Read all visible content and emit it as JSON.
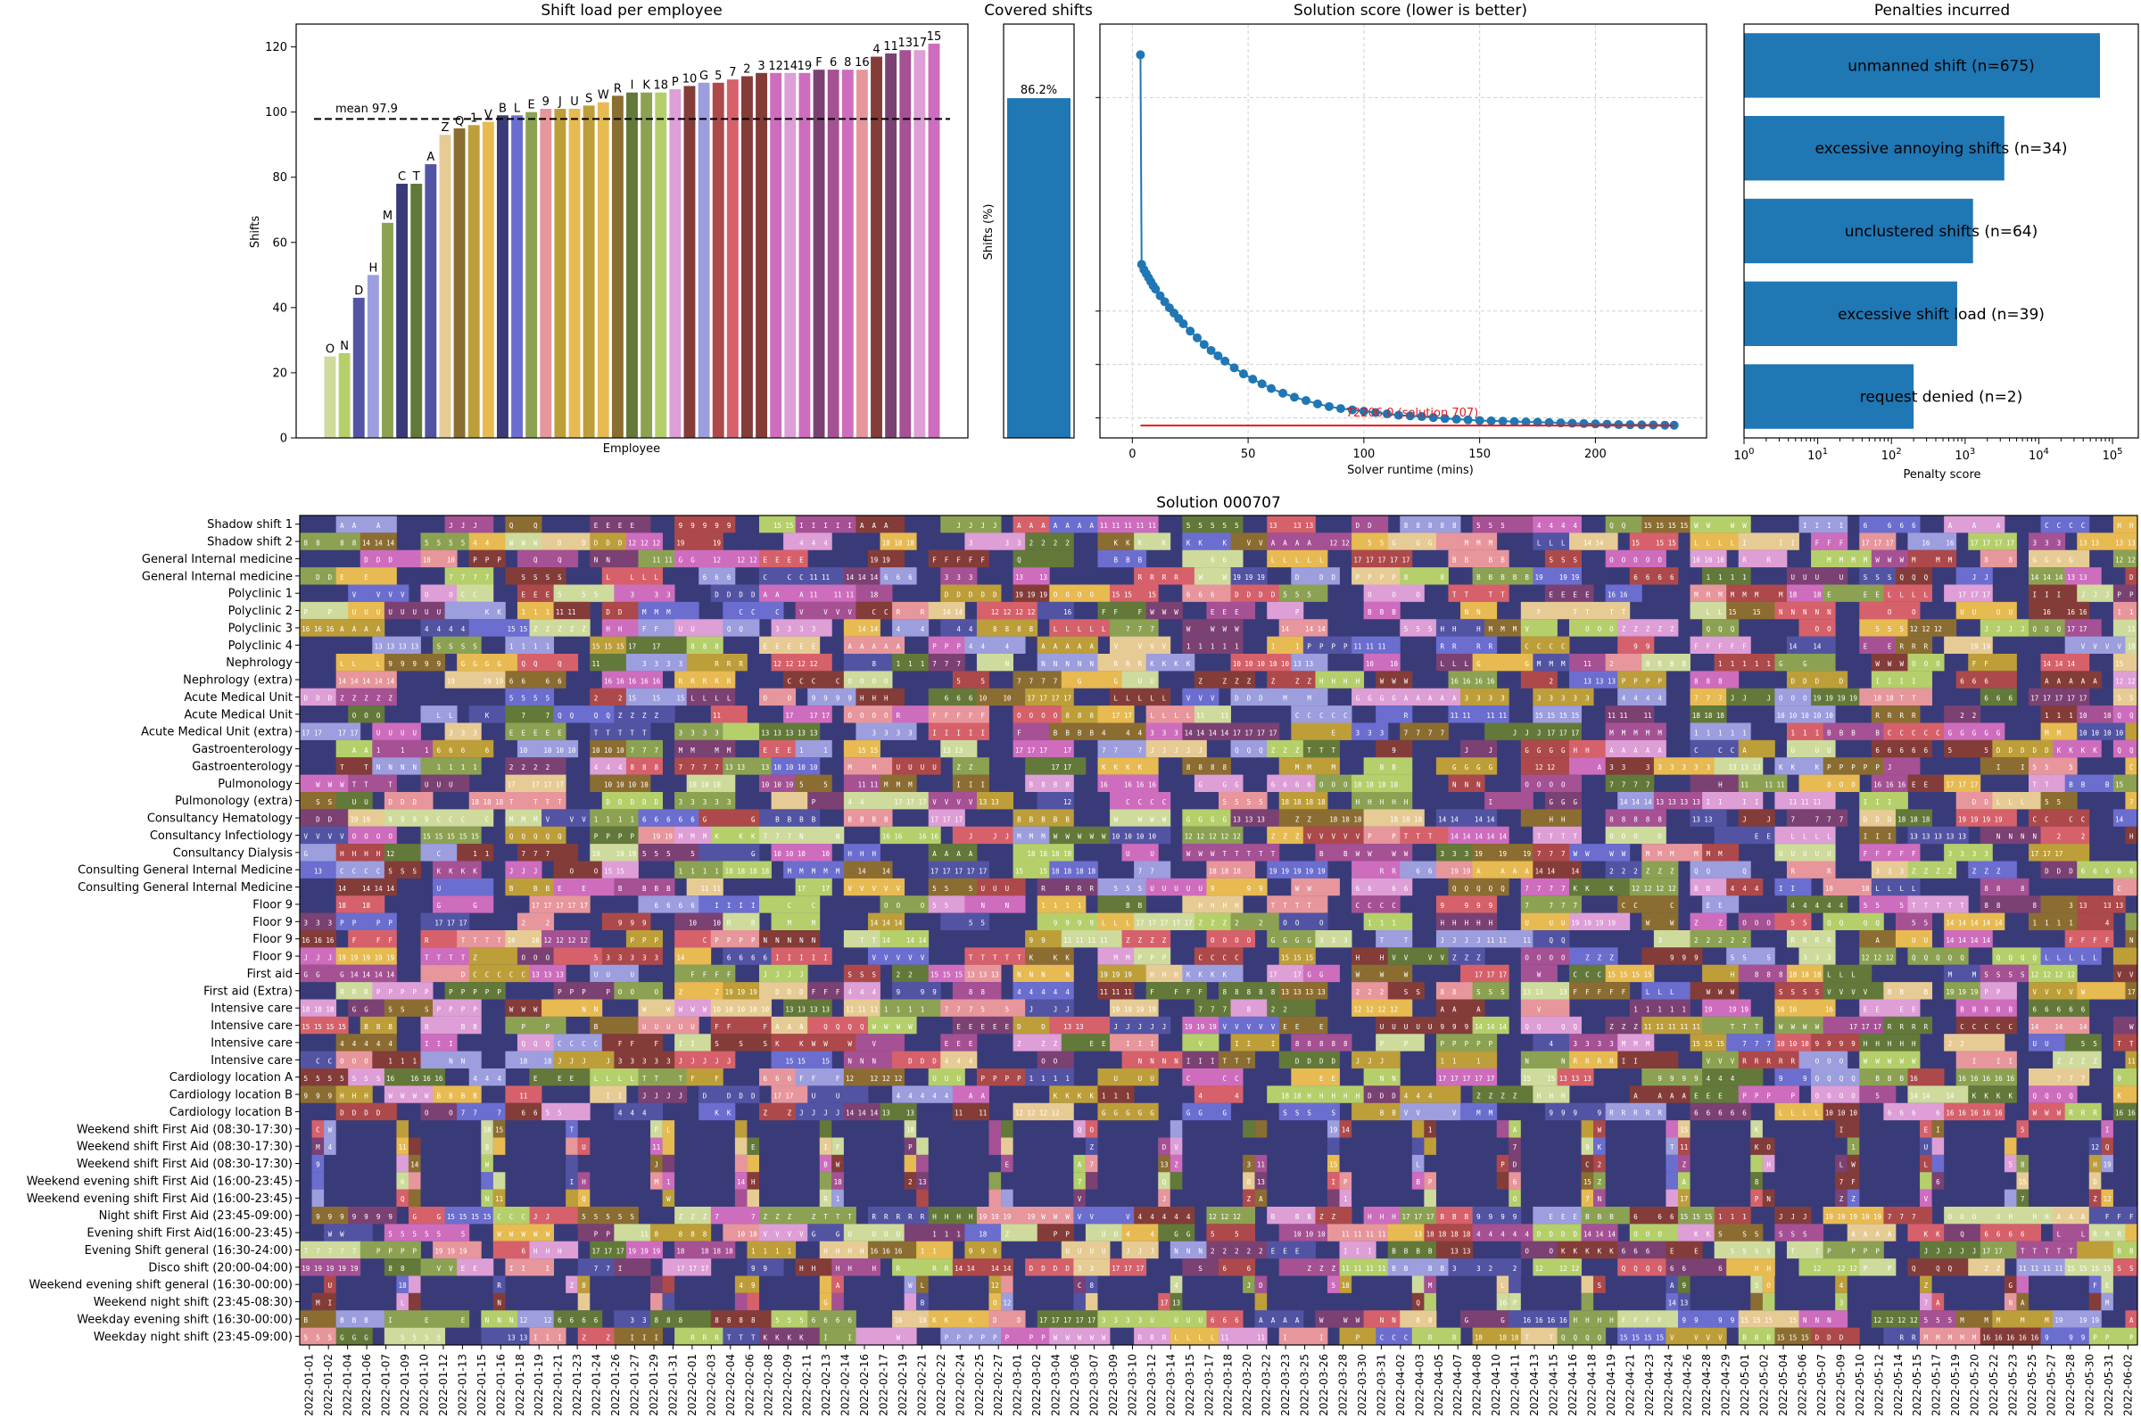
{
  "colors": {
    "bar_blue": "#1f77b4",
    "heat_bg": "#393b79",
    "red_line": "#e41a1c",
    "palette": [
      "#393b79",
      "#5254a3",
      "#6b6ecf",
      "#9c9ede",
      "#637939",
      "#8ca252",
      "#b5cf6b",
      "#cedb9c",
      "#8c6d31",
      "#bd9e39",
      "#e7ba52",
      "#e7cb94",
      "#843c39",
      "#ad494a",
      "#d6616b",
      "#e7969c",
      "#7b4173",
      "#a55194",
      "#ce6dbd",
      "#de9ed6"
    ]
  },
  "chart_data": [
    {
      "type": "bar",
      "title": "Shift load per employee",
      "xlabel": "Employee",
      "ylabel": "Shifts",
      "ylim": [
        0,
        127
      ],
      "yticks": [
        0,
        20,
        40,
        60,
        80,
        100,
        120
      ],
      "mean_label": "mean 97.9",
      "mean": 97.9,
      "categories": [
        "O",
        "N",
        "D",
        "H",
        "M",
        "C",
        "T",
        "A",
        "Z",
        "Q",
        "1",
        "V",
        "B",
        "L",
        "E",
        "9",
        "J",
        "U",
        "S",
        "W",
        "R",
        "I",
        "K",
        "18",
        "P",
        "10",
        "G",
        "5",
        "7",
        "2",
        "3",
        "12",
        "14",
        "19",
        "F",
        "6",
        "8",
        "16",
        "4",
        "11",
        "13",
        "17",
        "15"
      ],
      "values": [
        25,
        26,
        43,
        50,
        66,
        78,
        78,
        84,
        93,
        95,
        96,
        97,
        99,
        99,
        100,
        101,
        101,
        101,
        102,
        103,
        105,
        106,
        106,
        106,
        107,
        108,
        109,
        109,
        110,
        111,
        112,
        112,
        112,
        112,
        113,
        113,
        113,
        113,
        117,
        118,
        119,
        119,
        121
      ],
      "bar_colors": [
        "#cedb9c",
        "#b5cf6b",
        "#5254a3",
        "#9c9ede",
        "#8ca252",
        "#393b79",
        "#637939",
        "#5254a3",
        "#e7cb94",
        "#8c6d31",
        "#bd9e39",
        "#e7ba52",
        "#393b79",
        "#6b6ecf",
        "#8ca252",
        "#e7969c",
        "#bd9e39",
        "#e7ba52",
        "#bd9e39",
        "#e7ba52",
        "#8c6d31",
        "#637939",
        "#8ca252",
        "#b5cf6b",
        "#de9ed6",
        "#843c39",
        "#9c9ede",
        "#ad494a",
        "#d6616b",
        "#843c39",
        "#843c39",
        "#ce6dbd",
        "#de9ed6",
        "#ce6dbd",
        "#7b4173",
        "#a55194",
        "#ce6dbd",
        "#e7969c",
        "#843c39",
        "#7b4173",
        "#a55194",
        "#de9ed6",
        "#ce6dbd"
      ]
    },
    {
      "type": "bar",
      "title": "Covered shifts",
      "ylabel": "Shifts (%)",
      "ylim": [
        0,
        100
      ],
      "values": [
        86.2
      ],
      "value_label": "86.2%"
    },
    {
      "type": "scatter",
      "title": "Solution score (lower is better)",
      "xlabel": "Solver runtime (mins)",
      "xlim": [
        -14,
        248
      ],
      "ylim": [
        69000,
        131000
      ],
      "xticks": [
        0,
        50,
        100,
        150,
        200
      ],
      "points": [
        [
          3.5,
          126400
        ],
        [
          4,
          95000
        ],
        [
          5,
          94200
        ],
        [
          6,
          93600
        ],
        [
          7,
          93000
        ],
        [
          8,
          92400
        ],
        [
          9,
          91800
        ],
        [
          10,
          91300
        ],
        [
          12,
          90300
        ],
        [
          14,
          89400
        ],
        [
          16,
          88500
        ],
        [
          18,
          87700
        ],
        [
          20,
          86900
        ],
        [
          22,
          86100
        ],
        [
          25,
          85000
        ],
        [
          28,
          84000
        ],
        [
          31,
          83000
        ],
        [
          34,
          82100
        ],
        [
          37,
          81300
        ],
        [
          40,
          80500
        ],
        [
          44,
          79500
        ],
        [
          48,
          78600
        ],
        [
          52,
          77800
        ],
        [
          56,
          77100
        ],
        [
          60,
          76400
        ],
        [
          65,
          75700
        ],
        [
          70,
          75100
        ],
        [
          75,
          74600
        ],
        [
          80,
          74100
        ],
        [
          85,
          73700
        ],
        [
          90,
          73400
        ],
        [
          95,
          73200
        ],
        [
          100,
          73000
        ],
        [
          105,
          72800
        ],
        [
          110,
          72600
        ],
        [
          115,
          72400
        ],
        [
          120,
          72300
        ],
        [
          125,
          72200
        ],
        [
          130,
          72050
        ],
        [
          135,
          71900
        ],
        [
          140,
          71800
        ],
        [
          145,
          71700
        ],
        [
          150,
          71600
        ],
        [
          155,
          71550
        ],
        [
          160,
          71500
        ],
        [
          165,
          71450
        ],
        [
          170,
          71400
        ],
        [
          175,
          71350
        ],
        [
          180,
          71300
        ],
        [
          185,
          71250
        ],
        [
          190,
          71200
        ],
        [
          195,
          71150
        ],
        [
          200,
          71100
        ],
        [
          205,
          71060
        ],
        [
          210,
          71000
        ],
        [
          215,
          70980
        ],
        [
          220,
          70950
        ],
        [
          225,
          70930
        ],
        [
          230,
          70910
        ],
        [
          234,
          70900
        ]
      ],
      "best_value": 72206.0,
      "best_label": "72206.0 (solution 707)",
      "best_line_y": 70850
    },
    {
      "type": "bar",
      "orientation": "horizontal",
      "title": "Penalties incurred",
      "xlabel": "Penalty score",
      "scale": "log",
      "xlim_exp": [
        0,
        5.35
      ],
      "xtick_labels": [
        "10^0",
        "10^1",
        "10^2",
        "10^3",
        "10^4",
        "10^5"
      ],
      "categories": [
        "unmanned shift (n=675)",
        "excessive annoying shifts (n=34)",
        "unclustered shifts (n=64)",
        "excessive shift load (n=39)",
        "request denied (n=2)"
      ],
      "values": [
        67500,
        3400,
        1280,
        780,
        200
      ]
    },
    {
      "type": "heatmap",
      "title": "Solution 000707",
      "rows": [
        "Shadow shift 1",
        "Shadow shift 2",
        "General Internal medicine",
        "General Internal medicine",
        "Polyclinic 1",
        "Polyclinic 2",
        "Polyclinic 3",
        "Polyclinic 4",
        "Nephrology",
        "Nephrology (extra)",
        "Acute Medical Unit",
        "Acute Medical Unit",
        "Acute Medical Unit (extra)",
        "Gastroenterology",
        "Gastroenterology",
        "Pulmonology",
        "Pulmonology (extra)",
        "Consultancy Hematology",
        "Consultancy Infectiology",
        "Consultancy Dialysis",
        "Consulting General Internal Medicine",
        "Consulting General Internal Medicine",
        "Floor 9",
        "Floor 9",
        "Floor 9",
        "Floor 9",
        "First aid",
        "First aid (Extra)",
        "Intensive care",
        "Intensive care",
        "Intensive care",
        "Intensive care",
        "Cardiology location A",
        "Cardiology location B",
        "Cardiology location B",
        "Weekend shift First Aid (08:30-17:30)",
        "Weekend shift First Aid (08:30-17:30)",
        "Weekend shift First Aid (08:30-17:30)",
        "Weekend evening shift First Aid  (16:00-23:45)",
        "Weekend evening shift First Aid  (16:00-23:45)",
        "Night shift First Aid (23:45-09:00)",
        "Evening shift First Aid(16:00-23:45)",
        "Evening Shift general (16:30-24:00)",
        "Disco shift (20:00-04:00)",
        "Weekend evening shift general (16:30-00:00)",
        "Weekend night shift (23:45-08:30)",
        "Weekday evening shift (16:30-00:00)",
        "Weekday night shift (23:45-09:00)"
      ],
      "dates": [
        "2022-01-01",
        "2022-01-02",
        "2022-01-04",
        "2022-01-06",
        "2022-01-07",
        "2022-01-09",
        "2022-01-10",
        "2022-01-12",
        "2022-01-13",
        "2022-01-15",
        "2022-01-16",
        "2022-01-18",
        "2022-01-19",
        "2022-01-21",
        "2022-01-23",
        "2022-01-24",
        "2022-01-26",
        "2022-01-27",
        "2022-01-29",
        "2022-01-31",
        "2022-02-01",
        "2022-02-03",
        "2022-02-04",
        "2022-02-06",
        "2022-02-08",
        "2022-02-09",
        "2022-02-11",
        "2022-02-13",
        "2022-02-14",
        "2022-02-16",
        "2022-02-17",
        "2022-02-19",
        "2022-02-21",
        "2022-02-22",
        "2022-02-24",
        "2022-02-25",
        "2022-02-27",
        "2022-03-01",
        "2022-03-02",
        "2022-03-04",
        "2022-03-06",
        "2022-03-07",
        "2022-03-09",
        "2022-03-10",
        "2022-03-12",
        "2022-03-14",
        "2022-03-15",
        "2022-03-17",
        "2022-03-18",
        "2022-03-20",
        "2022-03-22",
        "2022-03-23",
        "2022-03-25",
        "2022-03-26",
        "2022-03-28",
        "2022-03-30",
        "2022-03-31",
        "2022-04-02",
        "2022-04-03",
        "2022-04-05",
        "2022-04-07",
        "2022-04-08",
        "2022-04-10",
        "2022-04-11",
        "2022-04-13",
        "2022-04-15",
        "2022-04-16",
        "2022-04-18",
        "2022-04-19",
        "2022-04-21",
        "2022-04-23",
        "2022-04-24",
        "2022-04-26",
        "2022-04-28",
        "2022-04-29",
        "2022-05-01",
        "2022-05-02",
        "2022-05-04",
        "2022-05-06",
        "2022-05-07",
        "2022-05-09",
        "2022-05-10",
        "2022-05-12",
        "2022-05-14",
        "2022-05-15",
        "2022-05-17",
        "2022-05-19",
        "2022-05-20",
        "2022-05-22",
        "2022-05-23",
        "2022-05-25",
        "2022-05-27",
        "2022-05-28",
        "2022-05-30",
        "2022-05-31",
        "2022-06-02"
      ],
      "num_days": 152,
      "seed": 707,
      "employees": [
        "O",
        "N",
        "D",
        "H",
        "M",
        "C",
        "T",
        "A",
        "Z",
        "Q",
        "1",
        "V",
        "B",
        "L",
        "E",
        "9",
        "J",
        "U",
        "S",
        "W",
        "R",
        "I",
        "K",
        "18",
        "P",
        "10",
        "G",
        "5",
        "7",
        "2",
        "3",
        "12",
        "14",
        "19",
        "F",
        "6",
        "8",
        "16",
        "4",
        "11",
        "13",
        "17",
        "15"
      ]
    }
  ]
}
